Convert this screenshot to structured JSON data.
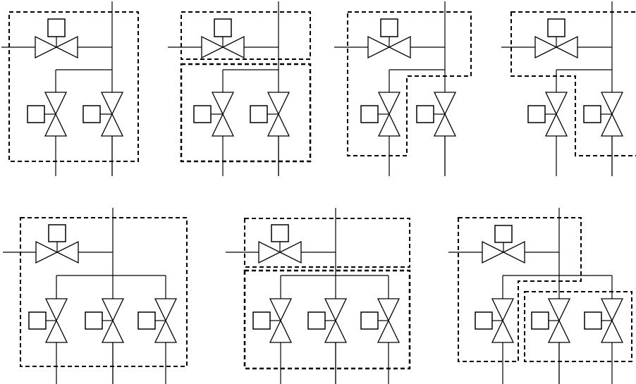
{
  "diagrams": [
    {
      "id": "a",
      "valve_columns": 2,
      "grouping": "all-in-one"
    },
    {
      "id": "b",
      "valve_columns": 2,
      "grouping": "horizontal-valve-separate"
    },
    {
      "id": "c",
      "valve_columns": 2,
      "grouping": "horizontal-with-first-vertical"
    },
    {
      "id": "d",
      "valve_columns": 2,
      "grouping": "horizontal-with-second-vertical"
    },
    {
      "id": "e",
      "valve_columns": 3,
      "grouping": "all-in-one"
    },
    {
      "id": "f",
      "valve_columns": 3,
      "grouping": "horizontal-valve-separate"
    },
    {
      "id": "g",
      "valve_columns": 3,
      "grouping": "horizontal-with-first-vertical"
    }
  ],
  "style": {
    "line_color": "#000000",
    "background": "#ffffff"
  }
}
